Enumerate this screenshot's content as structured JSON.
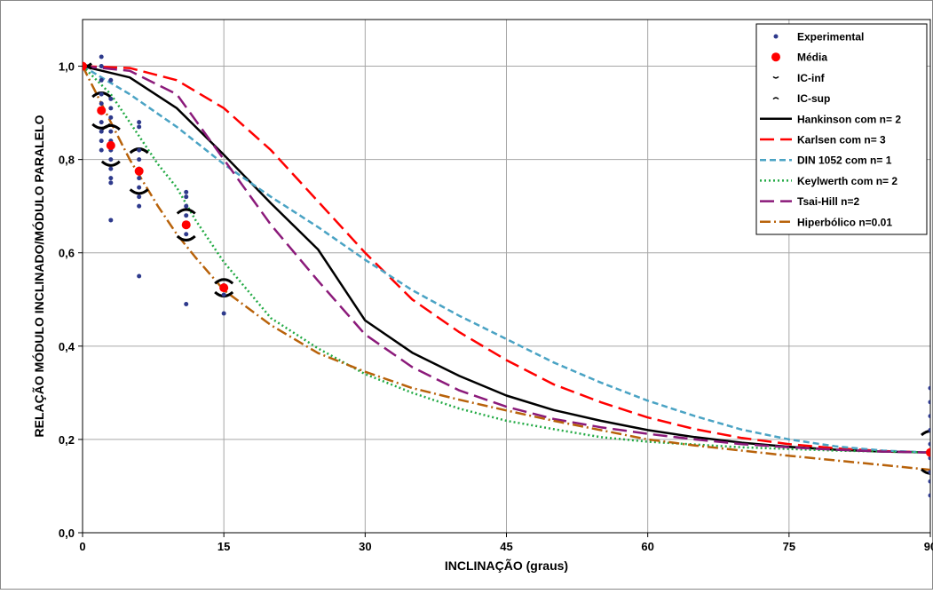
{
  "chart_data": {
    "type": "line",
    "xlabel": "INCLINAÇÃO (graus)",
    "ylabel": "RELAÇÃO MÓDULO INCLINADO/MÓDULO PARALELO",
    "xlim": [
      0,
      90
    ],
    "ylim": [
      0,
      1.1
    ],
    "grid": true,
    "legend_position": "top-right",
    "x_ticks": [
      {
        "value": 0,
        "label": "0"
      },
      {
        "value": 15,
        "label": "15"
      },
      {
        "value": 30,
        "label": "30"
      },
      {
        "value": 45,
        "label": "45"
      },
      {
        "value": 60,
        "label": "60"
      },
      {
        "value": 75,
        "label": "75"
      },
      {
        "value": 90,
        "label": "90"
      }
    ],
    "y_ticks": [
      {
        "value": 0.0,
        "label": "0,0"
      },
      {
        "value": 0.2,
        "label": "0,2"
      },
      {
        "value": 0.4,
        "label": "0,4"
      },
      {
        "value": 0.6,
        "label": "0,6"
      },
      {
        "value": 0.8,
        "label": "0,8"
      },
      {
        "value": 1.0,
        "label": "1,0"
      }
    ],
    "scatter_series": [
      {
        "name": "Experimental",
        "marker": "small-dot",
        "color": "#2e3a8c",
        "points": [
          [
            0,
            1.0
          ],
          [
            2,
            1.02
          ],
          [
            2,
            1.0
          ],
          [
            2,
            0.97
          ],
          [
            2,
            0.94
          ],
          [
            2,
            0.92
          ],
          [
            2,
            0.9
          ],
          [
            2,
            0.88
          ],
          [
            2,
            0.86
          ],
          [
            2,
            0.84
          ],
          [
            2,
            0.82
          ],
          [
            3,
            0.97
          ],
          [
            3,
            0.93
          ],
          [
            3,
            0.91
          ],
          [
            3,
            0.89
          ],
          [
            3,
            0.86
          ],
          [
            3,
            0.84
          ],
          [
            3,
            0.82
          ],
          [
            3,
            0.8
          ],
          [
            3,
            0.78
          ],
          [
            3,
            0.76
          ],
          [
            3,
            0.75
          ],
          [
            3,
            0.67
          ],
          [
            6,
            0.88
          ],
          [
            6,
            0.87
          ],
          [
            6,
            0.82
          ],
          [
            6,
            0.8
          ],
          [
            6,
            0.78
          ],
          [
            6,
            0.76
          ],
          [
            6,
            0.74
          ],
          [
            6,
            0.72
          ],
          [
            6,
            0.7
          ],
          [
            6,
            0.55
          ],
          [
            11,
            0.73
          ],
          [
            11,
            0.72
          ],
          [
            11,
            0.7
          ],
          [
            11,
            0.68
          ],
          [
            11,
            0.66
          ],
          [
            11,
            0.64
          ],
          [
            11,
            0.49
          ],
          [
            15,
            0.53
          ],
          [
            15,
            0.51
          ],
          [
            15,
            0.47
          ],
          [
            90,
            0.31
          ],
          [
            90,
            0.28
          ],
          [
            90,
            0.25
          ],
          [
            90,
            0.22
          ],
          [
            90,
            0.19
          ],
          [
            90,
            0.16
          ],
          [
            90,
            0.13
          ],
          [
            90,
            0.11
          ],
          [
            90,
            0.08
          ]
        ]
      },
      {
        "name": "Média",
        "marker": "dot",
        "color": "#ff0000",
        "points": [
          [
            0,
            1.0
          ],
          [
            2,
            0.905
          ],
          [
            3,
            0.83
          ],
          [
            6,
            0.775
          ],
          [
            11,
            0.66
          ],
          [
            15,
            0.525
          ],
          [
            90,
            0.172
          ]
        ]
      },
      {
        "name": "IC-inf",
        "marker": "arc-down",
        "color": "#000000",
        "points": [
          [
            0,
            1.0
          ],
          [
            2,
            0.87
          ],
          [
            3,
            0.79
          ],
          [
            6,
            0.73
          ],
          [
            11,
            0.63
          ],
          [
            15,
            0.51
          ],
          [
            90,
            0.13
          ]
        ]
      },
      {
        "name": "IC-sup",
        "marker": "arc-up",
        "color": "#000000",
        "points": [
          [
            0,
            1.0
          ],
          [
            2,
            0.94
          ],
          [
            3,
            0.87
          ],
          [
            6,
            0.82
          ],
          [
            11,
            0.69
          ],
          [
            15,
            0.54
          ],
          [
            90,
            0.215
          ]
        ]
      }
    ],
    "line_series": [
      {
        "name": "Hankinson com n= 2",
        "color": "#000000",
        "dash": "solid",
        "points": [
          [
            0,
            1.0
          ],
          [
            5,
            0.976
          ],
          [
            10,
            0.91
          ],
          [
            15,
            0.81
          ],
          [
            20,
            0.706
          ],
          [
            25,
            0.607
          ],
          [
            30,
            0.455
          ],
          [
            35,
            0.386
          ],
          [
            40,
            0.336
          ],
          [
            45,
            0.294
          ],
          [
            50,
            0.263
          ],
          [
            55,
            0.24
          ],
          [
            60,
            0.22
          ],
          [
            65,
            0.205
          ],
          [
            70,
            0.193
          ],
          [
            75,
            0.184
          ],
          [
            80,
            0.178
          ],
          [
            85,
            0.174
          ],
          [
            90,
            0.172
          ]
        ]
      },
      {
        "name": "Karlsen com n= 3",
        "color": "#ff0000",
        "dash": "long-dash",
        "points": [
          [
            0,
            1.0
          ],
          [
            5,
            0.996
          ],
          [
            10,
            0.97
          ],
          [
            15,
            0.91
          ],
          [
            20,
            0.82
          ],
          [
            25,
            0.71
          ],
          [
            30,
            0.6
          ],
          [
            35,
            0.5
          ],
          [
            40,
            0.43
          ],
          [
            45,
            0.37
          ],
          [
            50,
            0.318
          ],
          [
            55,
            0.28
          ],
          [
            60,
            0.247
          ],
          [
            65,
            0.222
          ],
          [
            70,
            0.203
          ],
          [
            75,
            0.19
          ],
          [
            80,
            0.181
          ],
          [
            85,
            0.175
          ],
          [
            90,
            0.172
          ]
        ]
      },
      {
        "name": "DIN 1052 com n= 1",
        "color": "#4aa3c4",
        "dash": "short-dash",
        "points": [
          [
            0,
            1.0
          ],
          [
            5,
            0.94
          ],
          [
            10,
            0.87
          ],
          [
            15,
            0.79
          ],
          [
            20,
            0.72
          ],
          [
            25,
            0.655
          ],
          [
            30,
            0.585
          ],
          [
            35,
            0.52
          ],
          [
            40,
            0.465
          ],
          [
            45,
            0.415
          ],
          [
            50,
            0.365
          ],
          [
            55,
            0.322
          ],
          [
            60,
            0.283
          ],
          [
            65,
            0.25
          ],
          [
            70,
            0.221
          ],
          [
            75,
            0.2
          ],
          [
            80,
            0.185
          ],
          [
            85,
            0.176
          ],
          [
            90,
            0.172
          ]
        ]
      },
      {
        "name": "Keylwerth com n= 2",
        "color": "#22aa44",
        "dash": "dotted",
        "points": [
          [
            0,
            1.0
          ],
          [
            3,
            0.94
          ],
          [
            5,
            0.88
          ],
          [
            8,
            0.79
          ],
          [
            10,
            0.74
          ],
          [
            12,
            0.67
          ],
          [
            15,
            0.58
          ],
          [
            20,
            0.46
          ],
          [
            25,
            0.395
          ],
          [
            30,
            0.34
          ],
          [
            35,
            0.3
          ],
          [
            40,
            0.266
          ],
          [
            45,
            0.24
          ],
          [
            50,
            0.222
          ],
          [
            55,
            0.205
          ],
          [
            60,
            0.195
          ],
          [
            70,
            0.183
          ],
          [
            80,
            0.176
          ],
          [
            90,
            0.172
          ]
        ]
      },
      {
        "name": "Tsai-Hill n=2",
        "color": "#8b1a7a",
        "dash": "long-dash",
        "points": [
          [
            0,
            1.0
          ],
          [
            5,
            0.99
          ],
          [
            10,
            0.94
          ],
          [
            15,
            0.8
          ],
          [
            20,
            0.66
          ],
          [
            25,
            0.54
          ],
          [
            30,
            0.425
          ],
          [
            35,
            0.355
          ],
          [
            40,
            0.305
          ],
          [
            45,
            0.27
          ],
          [
            50,
            0.244
          ],
          [
            55,
            0.226
          ],
          [
            60,
            0.212
          ],
          [
            65,
            0.2
          ],
          [
            70,
            0.19
          ],
          [
            75,
            0.183
          ],
          [
            80,
            0.178
          ],
          [
            85,
            0.174
          ],
          [
            90,
            0.172
          ]
        ]
      },
      {
        "name": "Hiperbólico n=0.01",
        "color": "#b8620a",
        "dash": "dash-dot",
        "points": [
          [
            0,
            1.0
          ],
          [
            3,
            0.88
          ],
          [
            5,
            0.8
          ],
          [
            8,
            0.7
          ],
          [
            10,
            0.64
          ],
          [
            12,
            0.59
          ],
          [
            15,
            0.52
          ],
          [
            20,
            0.445
          ],
          [
            25,
            0.385
          ],
          [
            30,
            0.345
          ],
          [
            35,
            0.31
          ],
          [
            40,
            0.285
          ],
          [
            45,
            0.262
          ],
          [
            50,
            0.24
          ],
          [
            55,
            0.22
          ],
          [
            60,
            0.2
          ],
          [
            65,
            0.187
          ],
          [
            70,
            0.176
          ],
          [
            75,
            0.165
          ],
          [
            80,
            0.155
          ],
          [
            85,
            0.145
          ],
          [
            90,
            0.135
          ]
        ]
      }
    ]
  }
}
